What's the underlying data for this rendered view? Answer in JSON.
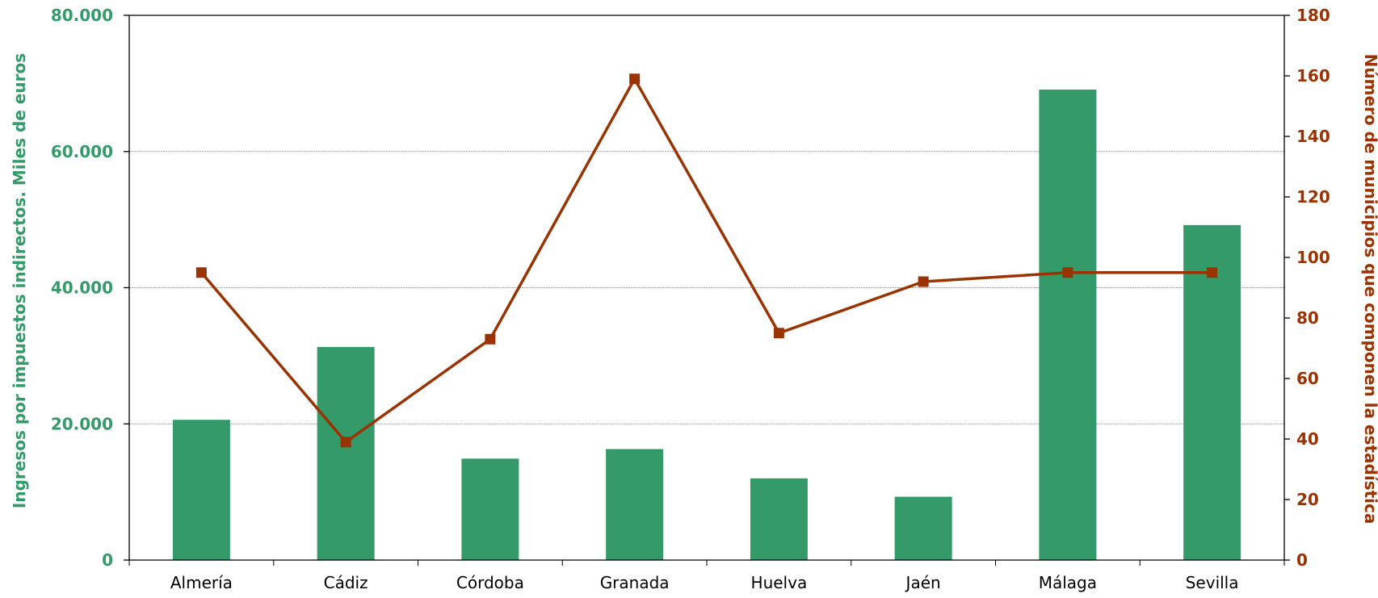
{
  "colors": {
    "bar": "#359a69",
    "line": "#9a3302",
    "left_axis_text": "#359a69",
    "right_axis_text": "#9a3302",
    "axis": "#000000",
    "grid": "#a0a0a0"
  },
  "chart_data": {
    "type": "bar",
    "categories": [
      "Almería",
      "Cádiz",
      "Córdoba",
      "Granada",
      "Huelva",
      "Jaén",
      "Málaga",
      "Sevilla"
    ],
    "series": [
      {
        "name": "Ingresos por impuestos indirectos. Miles de euros",
        "type": "bar",
        "axis": "left",
        "values": [
          20600,
          31300,
          14900,
          16300,
          12000,
          9300,
          69100,
          49200
        ]
      },
      {
        "name": "Número de municipios que componen la estadística",
        "type": "line",
        "axis": "right",
        "marker": "square",
        "values": [
          95,
          39,
          73,
          159,
          75,
          92,
          95,
          95
        ]
      }
    ],
    "y_left": {
      "label": "Ingresos por impuestos indirectos. Miles de euros",
      "ylim": [
        0,
        80000
      ],
      "ticks": [
        0,
        20000,
        40000,
        60000,
        80000
      ],
      "tick_labels": [
        "0",
        "20.000",
        "40.000",
        "60.000",
        "80.000"
      ]
    },
    "y_right": {
      "label": "Número de municipios que componen la estadística",
      "ylim": [
        0,
        180
      ],
      "ticks": [
        0,
        20,
        40,
        60,
        80,
        100,
        120,
        140,
        160,
        180
      ],
      "tick_labels": [
        "0",
        "20",
        "40",
        "60",
        "80",
        "100",
        "120",
        "140",
        "160",
        "180"
      ]
    },
    "grid": true,
    "legend": false
  }
}
